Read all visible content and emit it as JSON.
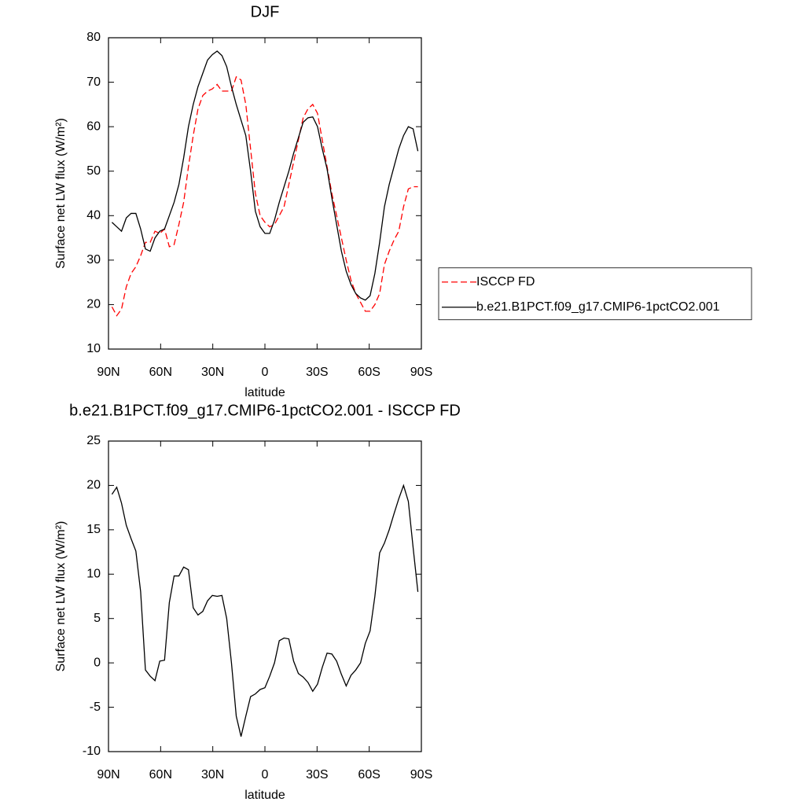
{
  "chart_data": [
    {
      "type": "line",
      "title": "DJF",
      "xlabel": "latitude",
      "ylabel": "Surface net LW flux (W/m²)",
      "x": [
        88,
        85.25,
        82.5,
        79.75,
        77,
        74.25,
        71.5,
        68.75,
        66,
        63.25,
        60.5,
        57.75,
        55,
        52.25,
        49.5,
        46.75,
        44,
        41.25,
        38.5,
        35.75,
        33,
        30.25,
        27.5,
        24.75,
        22,
        19.25,
        16.5,
        13.75,
        11,
        8.25,
        5.5,
        2.75,
        0,
        -2.75,
        -5.5,
        -8.25,
        -11,
        -13.75,
        -16.5,
        -19.25,
        -22,
        -24.75,
        -27.5,
        -30.25,
        -33,
        -35.75,
        -38.5,
        -41.25,
        -44,
        -46.75,
        -49.5,
        -52.25,
        -55,
        -57.75,
        -60.5,
        -63.25,
        -66,
        -68.75,
        -71.5,
        -74.25,
        -77,
        -79.75,
        -82.5,
        -85.25,
        -88
      ],
      "series": [
        {
          "name": "ISCCP FD",
          "color": "#ff0000",
          "dash": "dashed",
          "values": [
            19.5,
            17.5,
            19,
            24,
            27,
            28.5,
            31,
            34,
            34,
            36.5,
            36,
            37,
            33,
            33.5,
            38,
            43,
            51,
            58,
            64,
            67,
            68,
            68.5,
            69.5,
            68,
            68,
            68,
            71.2,
            70.5,
            65,
            55,
            45,
            40,
            38.5,
            37.5,
            38,
            40,
            42,
            47,
            52,
            57,
            62,
            64,
            65,
            63,
            57,
            51,
            45,
            40,
            35,
            30,
            25.5,
            22.5,
            20.5,
            18.5,
            18.5,
            20,
            22.5,
            29,
            32,
            34.5,
            36.5,
            42,
            46,
            46.5,
            46.5
          ]
        },
        {
          "name": "b.e21.B1PCT.f09_g17.CMIP6-1pctCO2.001",
          "color": "#000000",
          "dash": "solid",
          "values": [
            38.5,
            37.5,
            36.5,
            39.5,
            40.5,
            40.5,
            37,
            32.5,
            32,
            35,
            36.5,
            37,
            40,
            43,
            47,
            53,
            60,
            65,
            69,
            72,
            75,
            76.2,
            77,
            76,
            73.5,
            69,
            65,
            61.5,
            58,
            50,
            41,
            37.5,
            36,
            36,
            39,
            43,
            46.5,
            50,
            54,
            57.5,
            61,
            62,
            62.2,
            60,
            55,
            50.5,
            44,
            38,
            32,
            27.5,
            24.5,
            22.5,
            21.5,
            21,
            22,
            27,
            34,
            42,
            47,
            51,
            55,
            58,
            60,
            59.5,
            54.5
          ]
        }
      ],
      "xlim": [
        90,
        -90
      ],
      "xticks": [
        {
          "value": 90,
          "label": "90N"
        },
        {
          "value": 60,
          "label": "60N"
        },
        {
          "value": 30,
          "label": "30N"
        },
        0,
        {
          "value": -30,
          "label": "30S"
        },
        {
          "value": -60,
          "label": "60S"
        },
        {
          "value": -90,
          "label": "90S"
        }
      ],
      "ylim": [
        10,
        80
      ],
      "yticks": [
        10,
        20,
        30,
        40,
        50,
        60,
        70,
        80
      ],
      "legend": "right"
    },
    {
      "type": "line",
      "title": "b.e21.B1PCT.f09_g17.CMIP6-1pctCO2.001 - ISCCP FD",
      "xlabel": "latitude",
      "ylabel": "Surface net LW flux (W/m²)",
      "x": [
        88,
        85.25,
        82.5,
        79.75,
        77,
        74.25,
        71.5,
        68.75,
        66,
        63.25,
        60.5,
        57.75,
        55,
        52.25,
        49.5,
        46.75,
        44,
        41.25,
        38.5,
        35.75,
        33,
        30.25,
        27.5,
        24.75,
        22,
        19.25,
        16.5,
        13.75,
        11,
        8.25,
        5.5,
        2.75,
        0,
        -2.75,
        -5.5,
        -8.25,
        -11,
        -13.75,
        -16.5,
        -19.25,
        -22,
        -24.75,
        -27.5,
        -30.25,
        -33,
        -35.75,
        -38.5,
        -41.25,
        -44,
        -46.75,
        -49.5,
        -52.25,
        -55,
        -57.75,
        -60.5,
        -63.25,
        -66,
        -68.75,
        -71.5,
        -74.25,
        -77,
        -79.75,
        -82.5,
        -85.25,
        -88
      ],
      "series": [
        {
          "color": "#000000",
          "dash": "solid",
          "values": [
            19,
            19.8,
            18,
            15.5,
            14,
            12.6,
            8,
            -0.8,
            -1.5,
            -2,
            0.2,
            0.3,
            6.8,
            9.8,
            9.8,
            10.8,
            10.5,
            6.2,
            5.4,
            5.8,
            7,
            7.6,
            7.5,
            7.6,
            5,
            0,
            -6,
            -8.3,
            -6,
            -3.8,
            -3.5,
            -3,
            -2.8,
            -1.5,
            0,
            2.5,
            2.8,
            2.7,
            0.2,
            -1.2,
            -1.6,
            -2.2,
            -3.2,
            -2.4,
            -0.5,
            1.1,
            1,
            0.2,
            -1.3,
            -2.6,
            -1.4,
            -0.8,
            0,
            2.2,
            3.6,
            7.5,
            12.4,
            13.5,
            15,
            16.8,
            18.5,
            20,
            18.2,
            13,
            8
          ]
        }
      ],
      "xlim": [
        90,
        -90
      ],
      "xticks": [
        {
          "value": 90,
          "label": "90N"
        },
        {
          "value": 60,
          "label": "60N"
        },
        {
          "value": 30,
          "label": "30N"
        },
        0,
        {
          "value": -30,
          "label": "30S"
        },
        {
          "value": -60,
          "label": "60S"
        },
        {
          "value": -90,
          "label": "90S"
        }
      ],
      "ylim": [
        -10,
        25
      ],
      "yticks": [
        -10,
        -5,
        0,
        5,
        10,
        15,
        20,
        25
      ]
    }
  ]
}
